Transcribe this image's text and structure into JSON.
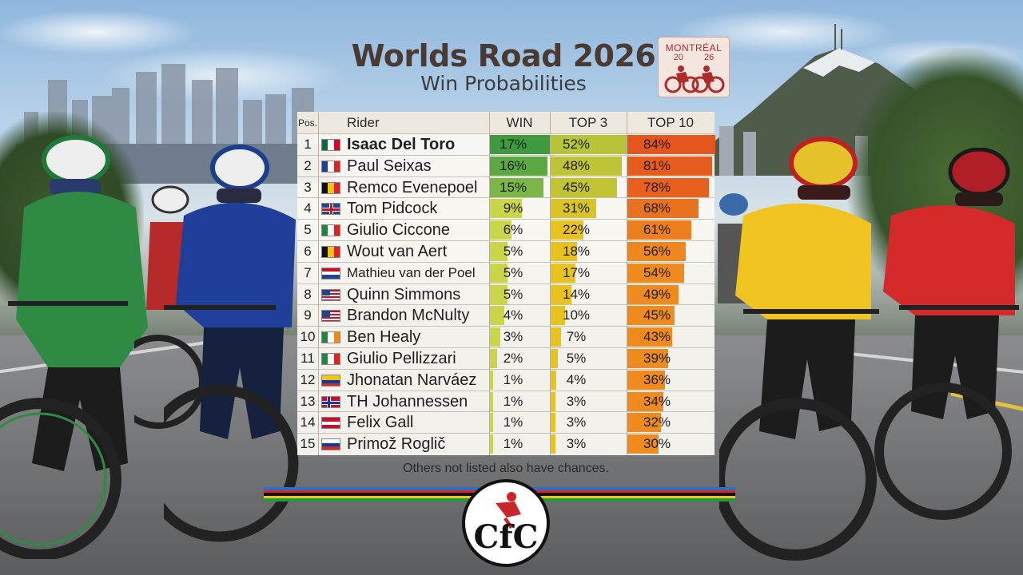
{
  "header": {
    "title": "Worlds Road 2026",
    "subtitle": "Win Probabilities"
  },
  "event_logo": {
    "city": "MONTRÉAL",
    "year_left": "20",
    "year_right": "26"
  },
  "table": {
    "columns": {
      "pos": "Pos.",
      "rider": "Rider",
      "win": "WIN",
      "top3": "TOP 3",
      "top10": "TOP 10"
    },
    "rows": [
      {
        "pos": "1",
        "flag": "mexico",
        "name": "Isaac Del Toro",
        "win": 17,
        "top3": 52,
        "top10": 84,
        "win_label": "17%",
        "top3_label": "52%",
        "top10_label": "84%"
      },
      {
        "pos": "2",
        "flag": "france",
        "name": "Paul Seixas",
        "win": 16,
        "top3": 48,
        "top10": 81,
        "win_label": "16%",
        "top3_label": "48%",
        "top10_label": "81%"
      },
      {
        "pos": "3",
        "flag": "belgium",
        "name": "Remco Evenepoel",
        "win": 15,
        "top3": 45,
        "top10": 78,
        "win_label": "15%",
        "top3_label": "45%",
        "top10_label": "78%"
      },
      {
        "pos": "4",
        "flag": "uk",
        "name": "Tom Pidcock",
        "win": 9,
        "top3": 31,
        "top10": 68,
        "win_label": "9%",
        "top3_label": "31%",
        "top10_label": "68%"
      },
      {
        "pos": "5",
        "flag": "italy",
        "name": "Giulio Ciccone",
        "win": 6,
        "top3": 22,
        "top10": 61,
        "win_label": "6%",
        "top3_label": "22%",
        "top10_label": "61%"
      },
      {
        "pos": "6",
        "flag": "belgium",
        "name": "Wout van Aert",
        "win": 5,
        "top3": 18,
        "top10": 56,
        "win_label": "5%",
        "top3_label": "18%",
        "top10_label": "56%"
      },
      {
        "pos": "7",
        "flag": "netherlands",
        "name": "Mathieu van der Poel",
        "win": 5,
        "top3": 17,
        "top10": 54,
        "win_label": "5%",
        "top3_label": "17%",
        "top10_label": "54%"
      },
      {
        "pos": "8",
        "flag": "usa",
        "name": "Quinn Simmons",
        "win": 5,
        "top3": 14,
        "top10": 49,
        "win_label": "5%",
        "top3_label": "14%",
        "top10_label": "49%"
      },
      {
        "pos": "9",
        "flag": "usa",
        "name": "Brandon McNulty",
        "win": 4,
        "top3": 10,
        "top10": 45,
        "win_label": "4%",
        "top3_label": "10%",
        "top10_label": "45%"
      },
      {
        "pos": "10",
        "flag": "ireland",
        "name": "Ben Healy",
        "win": 3,
        "top3": 7,
        "top10": 43,
        "win_label": "3%",
        "top3_label": "7%",
        "top10_label": "43%"
      },
      {
        "pos": "11",
        "flag": "italy",
        "name": "Giulio Pellizzari",
        "win": 2,
        "top3": 5,
        "top10": 39,
        "win_label": "2%",
        "top3_label": "5%",
        "top10_label": "39%"
      },
      {
        "pos": "12",
        "flag": "ecuador",
        "name": "Jhonatan Narváez",
        "win": 1,
        "top3": 4,
        "top10": 36,
        "win_label": "1%",
        "top3_label": "4%",
        "top10_label": "36%"
      },
      {
        "pos": "13",
        "flag": "norway",
        "name": "TH Johannessen",
        "win": 1,
        "top3": 3,
        "top10": 34,
        "win_label": "1%",
        "top3_label": "3%",
        "top10_label": "34%"
      },
      {
        "pos": "14",
        "flag": "austria",
        "name": "Felix Gall",
        "win": 1,
        "top3": 3,
        "top10": 32,
        "win_label": "1%",
        "top3_label": "3%",
        "top10_label": "32%"
      },
      {
        "pos": "15",
        "flag": "slovenia",
        "name": "Primož Roglič",
        "win": 1,
        "top3": 3,
        "top10": 30,
        "win_label": "1%",
        "top3_label": "3%",
        "top10_label": "30%"
      }
    ]
  },
  "footer": {
    "note": "Others not listed also have chances.",
    "logo_text": "CfC"
  },
  "colors": {
    "win_high": "#3e9a3e",
    "win_mid": "#7ab648",
    "win_low": "#c9d64a",
    "top3_high": "#b7c43a",
    "top3_low": "#e8c21e",
    "top10_high": "#e5561e",
    "top10_low": "#ef8a1e",
    "title": "#4a3a32",
    "rainbow": [
      "#2f6fc4",
      "#d7262a",
      "#111111",
      "#f2c418",
      "#1f9a3d"
    ]
  }
}
